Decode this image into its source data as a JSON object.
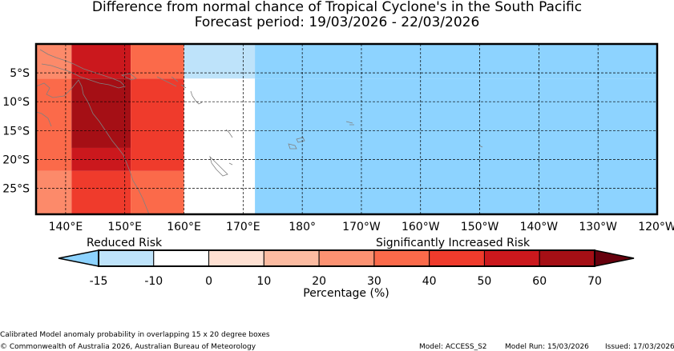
{
  "title": {
    "line1": "Difference from normal chance of Tropical Cyclone's in the South Pacific",
    "line2": "Forecast period: 19/03/2026 - 22/03/2026"
  },
  "map": {
    "lon_ticks": [
      "140°E",
      "150°E",
      "160°E",
      "170°E",
      "180°",
      "170°W",
      "160°W",
      "150°W",
      "140°W",
      "130°W",
      "120°W"
    ],
    "lat_ticks": [
      "5°S",
      "10°S",
      "15°S",
      "20°S",
      "25°S"
    ],
    "lon_range_east": [
      135,
      240
    ],
    "lat_range": [
      0,
      -29.5
    ],
    "grid": "dashed",
    "cells": [
      {
        "lon": [
          135,
          141
        ],
        "lat": [
          0,
          -6
        ],
        "color": "#fc8a6a"
      },
      {
        "lon": [
          141,
          151
        ],
        "lat": [
          0,
          -6
        ],
        "color": "#cb181d"
      },
      {
        "lon": [
          151,
          160
        ],
        "lat": [
          0,
          -6
        ],
        "color": "#fb6a4a"
      },
      {
        "lon": [
          160,
          172
        ],
        "lat": [
          0,
          -6
        ],
        "color": "#bee3fa"
      },
      {
        "lon": [
          172,
          240
        ],
        "lat": [
          0,
          -6
        ],
        "color": "#8dd3ff"
      },
      {
        "lon": [
          135,
          141
        ],
        "lat": [
          -6,
          -22
        ],
        "color": "#fb6a4a"
      },
      {
        "lon": [
          141,
          151
        ],
        "lat": [
          -6,
          -18
        ],
        "color": "#a50f15"
      },
      {
        "lon": [
          151,
          160
        ],
        "lat": [
          -6,
          -22
        ],
        "color": "#ef3b2c"
      },
      {
        "lon": [
          160,
          172
        ],
        "lat": [
          -6,
          -29.5
        ],
        "color": "#ffffff"
      },
      {
        "lon": [
          172,
          240
        ],
        "lat": [
          -6,
          -29.5
        ],
        "color": "#8dd3ff"
      },
      {
        "lon": [
          141,
          151
        ],
        "lat": [
          -18,
          -22
        ],
        "color": "#cb181d"
      },
      {
        "lon": [
          135,
          141
        ],
        "lat": [
          -22,
          -29.5
        ],
        "color": "#fc8a6a"
      },
      {
        "lon": [
          141,
          151
        ],
        "lat": [
          -22,
          -29.5
        ],
        "color": "#ef3b2c"
      },
      {
        "lon": [
          151,
          160
        ],
        "lat": [
          -22,
          -29.5
        ],
        "color": "#fb6a4a"
      }
    ]
  },
  "colorbar": {
    "label_left": "Reduced Risk",
    "label_right": "Significantly Increased Risk",
    "axis_label": "Percentage (%)",
    "tick_labels": [
      "-15",
      "-10",
      "0",
      "10",
      "20",
      "30",
      "40",
      "50",
      "60",
      "70"
    ],
    "segment_colors": [
      "#bee3fa",
      "#ffffff",
      "#fee0d2",
      "#fcbba1",
      "#fc9272",
      "#fb6a4a",
      "#ef3b2c",
      "#cb181d",
      "#a50f15"
    ],
    "under_color": "#8dd3ff",
    "over_color": "#67000d"
  },
  "footer": {
    "note": "Calibrated Model anomaly probability in overlapping 15 x 20 degree boxes",
    "copyright": "© Commonwealth of Australia 2026, Australian Bureau of Meteorology",
    "model": "Model: ACCESS_S2",
    "model_run": "Model Run: 15/03/2026",
    "issued": "Issued: 17/03/2026"
  }
}
